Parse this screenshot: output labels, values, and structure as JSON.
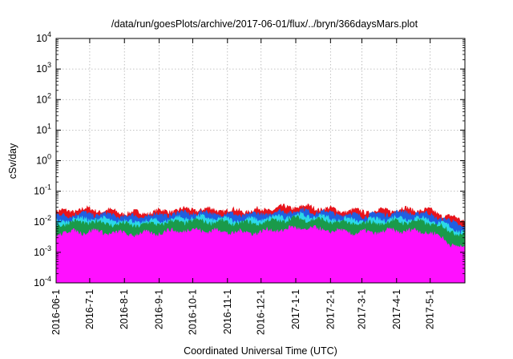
{
  "chart_data": {
    "type": "area",
    "title": "/data/run/goesPlots/archive/2017-06-01/flux/../bryn/366daysMars.plot",
    "xlabel": "Coordinated Universal Time (UTC)",
    "ylabel": "cSv/day",
    "yscale": "log",
    "ylim": [
      0.0001,
      10000
    ],
    "xlim": [
      "2016-06-01",
      "2017-06-01"
    ],
    "grid": true,
    "legend": "none",
    "y_ticks": [
      {
        "base": "10",
        "exp": "-4"
      },
      {
        "base": "10",
        "exp": "-3"
      },
      {
        "base": "10",
        "exp": "-2"
      },
      {
        "base": "10",
        "exp": "-1"
      },
      {
        "base": "10",
        "exp": "0"
      },
      {
        "base": "10",
        "exp": "1"
      },
      {
        "base": "10",
        "exp": "2"
      },
      {
        "base": "10",
        "exp": "3"
      },
      {
        "base": "10",
        "exp": "4"
      }
    ],
    "x_ticks": [
      "2016-06-1",
      "2016-7-1",
      "2016-8-1",
      "2016-9-1",
      "2016-10-1",
      "2016-11-1",
      "2016-12-1",
      "2017-1-1",
      "2017-2-1",
      "2017-3-1",
      "2017-4-1",
      "2017-5-1"
    ],
    "x": [
      "2016-06-01",
      "2016-07-01",
      "2016-08-01",
      "2016-09-01",
      "2016-10-01",
      "2016-11-01",
      "2016-12-01",
      "2017-01-01",
      "2017-02-01",
      "2017-03-01",
      "2017-04-01",
      "2017-05-01",
      "2017-06-01"
    ],
    "series": [
      {
        "color": "#e8141b",
        "values": [
          0.02,
          0.022,
          0.021,
          0.022,
          0.022,
          0.024,
          0.026,
          0.027,
          0.025,
          0.024,
          0.023,
          0.021,
          0.012
        ]
      },
      {
        "color": "#1f5fe0",
        "values": [
          0.015,
          0.016,
          0.016,
          0.017,
          0.017,
          0.018,
          0.019,
          0.02,
          0.019,
          0.018,
          0.018,
          0.016,
          0.008
        ]
      },
      {
        "color": "#2bd9e8",
        "values": [
          0.01,
          0.011,
          0.011,
          0.011,
          0.012,
          0.012,
          0.013,
          0.014,
          0.013,
          0.012,
          0.012,
          0.011,
          0.005
        ]
      },
      {
        "color": "#1a9a4a",
        "values": [
          0.008,
          0.0085,
          0.0085,
          0.009,
          0.009,
          0.0095,
          0.01,
          0.011,
          0.01,
          0.0095,
          0.009,
          0.0085,
          0.004
        ]
      },
      {
        "color": "#ff10ff",
        "values": [
          0.004,
          0.0042,
          0.0043,
          0.0045,
          0.0046,
          0.0048,
          0.005,
          0.0053,
          0.005,
          0.0048,
          0.0045,
          0.0042,
          0.0013
        ]
      }
    ]
  }
}
